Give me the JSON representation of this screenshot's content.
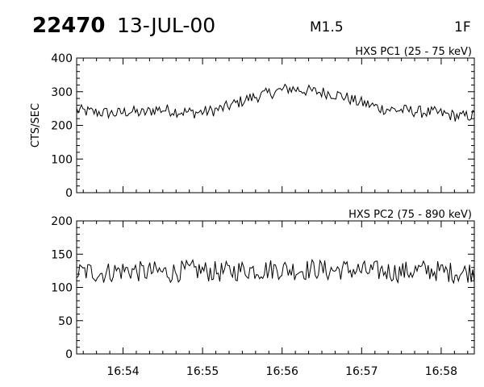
{
  "header": {
    "flare_id": "22470",
    "date": "13-JUL-00",
    "goes_class": "M1.5",
    "optical_class": "1F"
  },
  "colors": {
    "background": "#ffffff",
    "ink": "#000000"
  },
  "chart_data": [
    {
      "type": "line",
      "title": "HXS PC1 (25 - 75 keV)",
      "ylabel": "CTS/SEC",
      "xlabel": "",
      "ylim": [
        0,
        400
      ],
      "yticks": [
        "0",
        "100",
        "200",
        "300",
        "400"
      ],
      "xlim": [
        "16:53:25",
        "16:58:25"
      ],
      "xticks": [
        "16:54",
        "16:55",
        "16:56",
        "16:57",
        "16:58"
      ],
      "grid": false,
      "series": [
        {
          "x": [
            "16:53:25",
            "16:53:35",
            "16:53:45",
            "16:53:55",
            "16:54:05",
            "16:54:15",
            "16:54:25",
            "16:54:35",
            "16:54:45",
            "16:54:55",
            "16:55:05",
            "16:55:15",
            "16:55:25",
            "16:55:35",
            "16:55:45",
            "16:55:55",
            "16:56:05",
            "16:56:15",
            "16:56:25",
            "16:56:35",
            "16:56:45",
            "16:56:55",
            "16:57:05",
            "16:57:15",
            "16:57:25",
            "16:57:35",
            "16:57:45",
            "16:57:55",
            "16:58:05",
            "16:58:15",
            "16:58:25"
          ],
          "values": [
            245,
            240,
            238,
            235,
            242,
            236,
            248,
            245,
            240,
            238,
            242,
            250,
            265,
            280,
            290,
            300,
            310,
            305,
            300,
            296,
            288,
            272,
            262,
            250,
            246,
            244,
            240,
            238,
            232,
            226,
            230
          ]
        }
      ]
    },
    {
      "type": "line",
      "title": "HXS PC2 (75 - 890 keV)",
      "ylabel": "",
      "xlabel": "",
      "ylim": [
        0,
        200
      ],
      "yticks": [
        "0",
        "50",
        "100",
        "150",
        "200"
      ],
      "xlim": [
        "16:53:25",
        "16:58:25"
      ],
      "xticks": [
        "16:54",
        "16:55",
        "16:56",
        "16:57",
        "16:58"
      ],
      "grid": false,
      "series": [
        {
          "x": [
            "16:53:25",
            "16:53:35",
            "16:53:45",
            "16:53:55",
            "16:54:05",
            "16:54:15",
            "16:54:25",
            "16:54:35",
            "16:54:45",
            "16:54:55",
            "16:55:05",
            "16:55:15",
            "16:55:25",
            "16:55:35",
            "16:55:45",
            "16:55:55",
            "16:56:05",
            "16:56:15",
            "16:56:25",
            "16:56:35",
            "16:56:45",
            "16:56:55",
            "16:57:05",
            "16:57:15",
            "16:57:25",
            "16:57:35",
            "16:57:45",
            "16:57:55",
            "16:58:05",
            "16:58:15",
            "16:58:25"
          ],
          "values": [
            122,
            124,
            121,
            125,
            126,
            123,
            124,
            122,
            125,
            126,
            124,
            123,
            125,
            127,
            126,
            128,
            127,
            126,
            128,
            125,
            127,
            126,
            124,
            125,
            123,
            124,
            126,
            125,
            123,
            122,
            124
          ]
        }
      ]
    }
  ]
}
